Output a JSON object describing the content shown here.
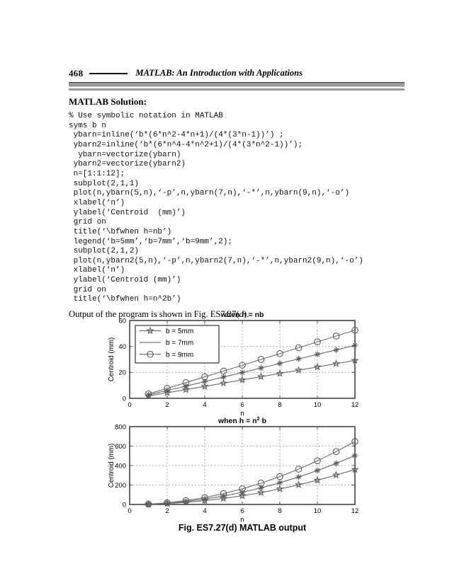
{
  "page": {
    "number": "468",
    "book_title": "MATLAB: An Introduction with Applications"
  },
  "solution_heading": "MATLAB Solution:",
  "code": {
    "lines": [
      "% Use symbolic notation in MATLAB",
      "syms b n",
      " ybarn=inline(‘b*(6*n^2-4*n+1)/(4*(3*n-1))’) ;",
      " ybarn2=inline(‘b*(6*n^4-4*n^2+1)/(4*(3*n^2-1))’);",
      "  ybarn=vectorize(ybarn)",
      " ybarn2=vectorize(ybarn2)",
      " n=[1:1:12];",
      " subplot(2,1,1)",
      " plot(n,ybarn(5,n),‘-p’,n,ybarn(7,n),‘-*’,n,ybarn(9,n),‘-o’)",
      " xlabel(‘n’)",
      " ylabel(‘Centroid  (mm)’)",
      " grid on",
      " title(‘\\bfwhen h=nb’)",
      " legend(‘b=5mm’,‘b=7mm’,‘b=9mm’,2);",
      " subplot(2,1,2)",
      " plot(n,ybarn2(5,n),‘-p’,n,ybarn2(7,n),‘-*’,n,ybarn2(9,n),‘-o’)",
      " xlabel(‘n’)",
      " ylabel(‘Centroid (mm)’)",
      " grid on",
      " title(‘\\bfwhen h=n^2b’)"
    ]
  },
  "output_note": {
    "prefix": "Output of the program is shown in Fig. ES7.27(",
    "italic": "d",
    "suffix": ")."
  },
  "figure_caption": "Fig. ES7.27(d) MATLAB output",
  "colors": {
    "line": "#6e6e6e",
    "marker": "#5a5a5a",
    "frame": "#4d4d4d",
    "grid": "#9a9a9a",
    "text": "#000000",
    "legend_border": "#333333"
  },
  "chart_data": [
    {
      "type": "line",
      "title": "when h = nb",
      "xlabel": "n",
      "ylabel": "Centroid (mm)",
      "x": [
        1,
        2,
        3,
        4,
        5,
        6,
        7,
        8,
        9,
        10,
        11,
        12
      ],
      "xlim": [
        0,
        12
      ],
      "ylim": [
        0,
        60
      ],
      "xticks": [
        0,
        2,
        4,
        6,
        8,
        10,
        12
      ],
      "yticks": [
        0,
        20,
        40,
        60
      ],
      "grid": true,
      "legend": true,
      "legend_position": "upper-left",
      "series": [
        {
          "name": "b = 5mm",
          "marker": "star5",
          "legend_marker": "star5",
          "values": [
            1.9,
            4.3,
            6.7,
            9.2,
            11.7,
            14.2,
            16.7,
            19.2,
            21.7,
            24.2,
            26.7,
            29.2
          ]
        },
        {
          "name": "b = 7mm",
          "marker": "asterisk",
          "legend_marker": "line",
          "values": [
            2.6,
            6.0,
            9.4,
            12.9,
            16.4,
            19.9,
            23.4,
            26.9,
            30.4,
            33.9,
            37.3,
            40.9
          ]
        },
        {
          "name": "b = 9mm",
          "marker": "circle",
          "legend_marker": "circle",
          "values": [
            3.4,
            7.7,
            12.1,
            16.6,
            21.0,
            25.5,
            30.0,
            34.5,
            39.0,
            43.5,
            48.0,
            52.5
          ]
        }
      ]
    },
    {
      "type": "line",
      "title": "when h = n^2 b",
      "xlabel": "n",
      "ylabel": "Centroid (mm)",
      "x": [
        1,
        2,
        3,
        4,
        5,
        6,
        7,
        8,
        9,
        10,
        11,
        12
      ],
      "xlim": [
        0,
        12
      ],
      "ylim": [
        0,
        800
      ],
      "xticks": [
        0,
        2,
        4,
        6,
        8,
        10,
        12
      ],
      "yticks": [
        0,
        200,
        400,
        600,
        800
      ],
      "grid": true,
      "legend": false,
      "series": [
        {
          "name": "b = 5mm",
          "marker": "star5",
          "legend_marker": "star5",
          "values": [
            1.9,
            9.2,
            21.7,
            39.2,
            61.7,
            89.2,
            121.7,
            159.2,
            201.7,
            249.2,
            301.7,
            359.2
          ]
        },
        {
          "name": "b = 7mm",
          "marker": "asterisk",
          "legend_marker": "line",
          "values": [
            2.6,
            12.9,
            30.4,
            54.9,
            86.3,
            124.8,
            170.3,
            222.8,
            282.3,
            348.8,
            422.3,
            502.8
          ]
        },
        {
          "name": "b = 9mm",
          "marker": "circle",
          "legend_marker": "circle",
          "values": [
            3.4,
            16.6,
            39.0,
            70.5,
            111.0,
            160.5,
            219.0,
            286.5,
            363.0,
            448.5,
            543.0,
            646.5
          ]
        }
      ]
    }
  ]
}
